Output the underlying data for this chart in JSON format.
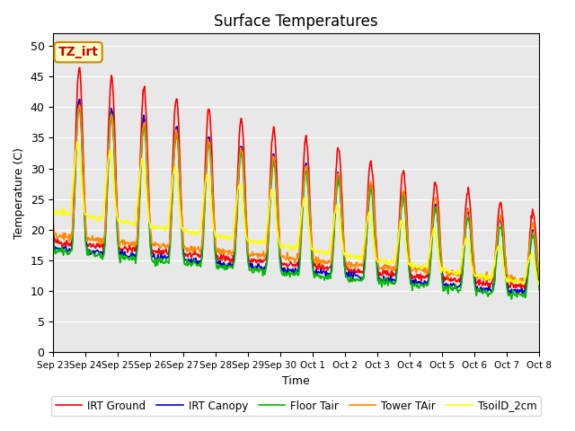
{
  "title": "Surface Temperatures",
  "xlabel": "Time",
  "ylabel": "Temperature (C)",
  "ylim": [
    0,
    52
  ],
  "yticks": [
    0,
    5,
    10,
    15,
    20,
    25,
    30,
    35,
    40,
    45,
    50
  ],
  "xtick_labels": [
    "Sep 23",
    "Sep 24",
    "Sep 25",
    "Sep 26",
    "Sep 27",
    "Sep 28",
    "Sep 29",
    "Sep 30",
    "Oct 1",
    "Oct 2",
    "Oct 3",
    "Oct 4",
    "Oct 5",
    "Oct 6",
    "Oct 7",
    "Oct 8"
  ],
  "annotation": "TZ_irt",
  "bg_color": "#e8e8e8",
  "series": [
    {
      "label": "IRT Ground",
      "color": "#ff0000",
      "lw": 1.2
    },
    {
      "label": "IRT Canopy",
      "color": "#0000cc",
      "lw": 1.2
    },
    {
      "label": "Floor Tair",
      "color": "#00bb00",
      "lw": 1.2
    },
    {
      "label": "Tower TAir",
      "color": "#ff8800",
      "lw": 1.2
    },
    {
      "label": "TsoilD_2cm",
      "color": "#ffff00",
      "lw": 1.2
    }
  ]
}
